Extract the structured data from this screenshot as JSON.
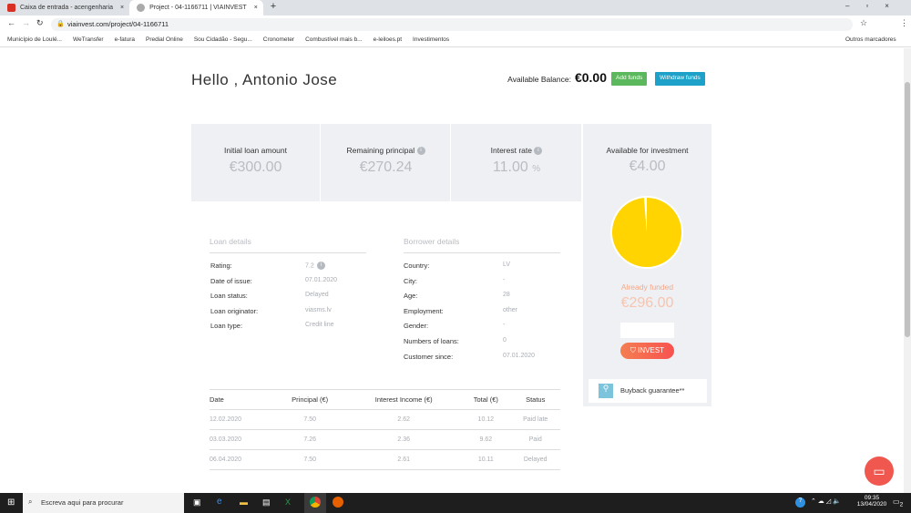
{
  "browser": {
    "tabs": [
      {
        "label": "Caixa de entrada - acengenharia",
        "favicon": "gmail-icon"
      },
      {
        "label": "Project - 04-1166711 | VIAINVEST",
        "favicon": "viainvest-icon"
      }
    ],
    "url": "viainvest.com/project/04-1166711",
    "bookmarks": [
      "Município de Loulé...",
      "WeTransfer",
      "e-fatura",
      "Predial Online",
      "Sou Cidadão - Segu...",
      "Cronometer",
      "Combustível mais b...",
      "e-leiloes.pt",
      "Investimentos"
    ],
    "other_bookmarks": "Outros marcadores"
  },
  "header": {
    "greeting": "Hello , Antonio Jose",
    "balance_label": "Available Balance:",
    "balance": "€0.00",
    "add_funds": "Add funds",
    "withdraw_funds": "Withdraw funds"
  },
  "stats": [
    {
      "label": "Initial loan amount",
      "value": "€300.00"
    },
    {
      "label": "Remaining principal",
      "value": "€270.24"
    },
    {
      "label": "Interest rate",
      "value": "11.00",
      "unit": "%"
    }
  ],
  "investment": {
    "label": "Available for investment",
    "value": "€4.00",
    "funded_label": "Already funded",
    "funded": "€296.00",
    "funded_fraction": 0.9867,
    "invest": "INVEST",
    "buyback": "Buyback guarantee**",
    "colors": {
      "pie": "#ffd400",
      "funded": "#f5a98a",
      "invest": "#f8644f"
    }
  },
  "loan_details": {
    "title": "Loan details",
    "rows": [
      {
        "k": "Rating:",
        "v": "7.2"
      },
      {
        "k": "Date of issue:",
        "v": "07.01.2020"
      },
      {
        "k": "Loan status:",
        "v": "Delayed"
      },
      {
        "k": "Loan originator:",
        "v": "viasms.lv"
      },
      {
        "k": "Loan type:",
        "v": "Credit line"
      }
    ]
  },
  "borrower_details": {
    "title": "Borrower details",
    "rows": [
      {
        "k": "Country:",
        "v": "LV"
      },
      {
        "k": "City:",
        "v": "-"
      },
      {
        "k": "Age:",
        "v": "28"
      },
      {
        "k": "Employment:",
        "v": "other"
      },
      {
        "k": "Gender:",
        "v": "-"
      },
      {
        "k": "Numbers of loans:",
        "v": "0"
      },
      {
        "k": "Customer since:",
        "v": "07.01.2020"
      }
    ]
  },
  "schedule": {
    "headers": [
      "Date",
      "Principal (€)",
      "Interest Income (€)",
      "Total (€)",
      "Status"
    ],
    "rows": [
      [
        "12.02.2020",
        "7.50",
        "2.62",
        "10.12",
        "Paid late"
      ],
      [
        "03.03.2020",
        "7.26",
        "2.36",
        "9.62",
        "Paid"
      ],
      [
        "06.04.2020",
        "7.50",
        "2.61",
        "10.11",
        "Delayed"
      ]
    ]
  },
  "taskbar": {
    "search_placeholder": "Escreva aqui para procurar",
    "time": "09:35",
    "date": "13/04/2020",
    "notifications": "2"
  }
}
